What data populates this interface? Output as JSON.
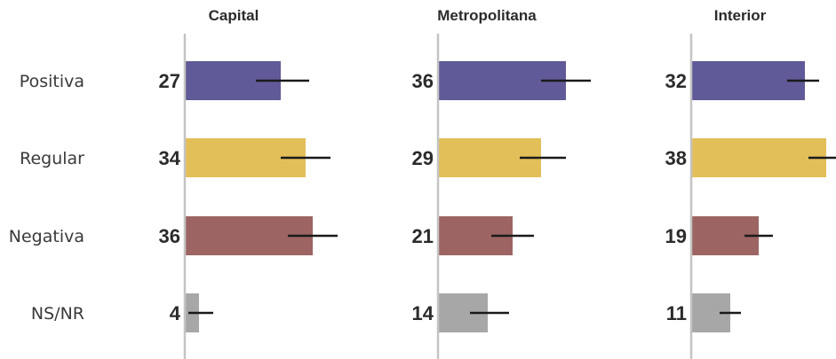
{
  "chart_data": {
    "type": "bar",
    "orientation": "horizontal",
    "categories": [
      "Positiva",
      "Regular",
      "Negativa",
      "NS/NR"
    ],
    "colors": [
      "#615a98",
      "#e3bf5a",
      "#9c6462",
      "#a7a7a7"
    ],
    "error_color": "#1a1a1a",
    "axis_color": "#c4c4c4",
    "xlim": [
      0,
      40
    ],
    "panels": [
      {
        "title": "Capital",
        "values": [
          27,
          34,
          36,
          4
        ],
        "ci": [
          [
            20,
            35
          ],
          [
            27,
            41
          ],
          [
            29,
            43
          ],
          [
            1,
            8
          ]
        ]
      },
      {
        "title": "Metropolitana",
        "values": [
          36,
          29,
          21,
          14
        ],
        "ci": [
          [
            29,
            43
          ],
          [
            23,
            36
          ],
          [
            15,
            27
          ],
          [
            9,
            20
          ]
        ]
      },
      {
        "title": "Interior",
        "values": [
          32,
          38,
          19,
          11
        ],
        "ci": [
          [
            27,
            36
          ],
          [
            33,
            44
          ],
          [
            15,
            23
          ],
          [
            8,
            14
          ]
        ]
      }
    ]
  }
}
